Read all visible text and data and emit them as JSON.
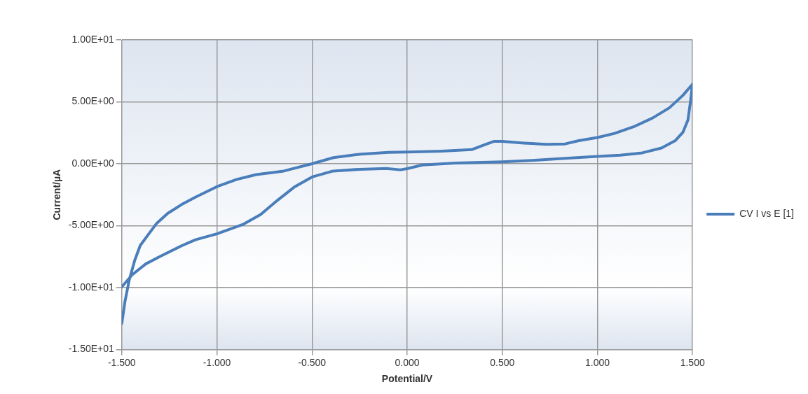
{
  "chart_data": {
    "type": "line",
    "xlabel": "Potential/V",
    "ylabel": "Current/µA",
    "xlim": [
      -1.5,
      1.5
    ],
    "ylim": [
      -15,
      10
    ],
    "xticks": [
      {
        "value": -1.5,
        "label": "-1.500"
      },
      {
        "value": -1,
        "label": "-1.000"
      },
      {
        "value": -0.5,
        "label": "-0.500"
      },
      {
        "value": 0,
        "label": "0.000"
      },
      {
        "value": 0.5,
        "label": "0.500"
      },
      {
        "value": 1,
        "label": "1.000"
      },
      {
        "value": 1.5,
        "label": "1.500"
      }
    ],
    "yticks": [
      {
        "value": -15,
        "label": "-1.50E+01"
      },
      {
        "value": -10,
        "label": "-1.00E+01"
      },
      {
        "value": -5,
        "label": "-5.00E+00"
      },
      {
        "value": 0,
        "label": "0.00E+00"
      },
      {
        "value": 5,
        "label": "5.00E+00"
      },
      {
        "value": 10,
        "label": "1.00E+01"
      }
    ],
    "grid": true,
    "legend": "right",
    "marker": "none",
    "line_style": "solid",
    "series": [
      {
        "name": "CV I vs E [1]",
        "color": "#4a7ebb",
        "x": [
          -1.5,
          -1.483,
          -1.461,
          -1.432,
          -1.403,
          -1.36,
          -1.316,
          -1.258,
          -1.186,
          -1.113,
          -1.0,
          -0.896,
          -0.794,
          -0.649,
          -0.5,
          -0.388,
          -0.243,
          -0.099,
          0,
          0.18,
          0.339,
          0.397,
          0.455,
          0.5,
          0.614,
          0.73,
          0.83,
          0.902,
          1.0,
          1.09,
          1.19,
          1.29,
          1.378,
          1.45,
          1.5,
          1.49,
          1.476,
          1.45,
          1.409,
          1.337,
          1.236,
          1.12,
          1.0,
          0.83,
          0.686,
          0.5,
          0.253,
          0.08,
          0,
          -0.036,
          -0.11,
          -0.25,
          -0.39,
          -0.5,
          -0.59,
          -0.68,
          -0.77,
          -0.86,
          -1.0,
          -1.113,
          -1.186,
          -1.301,
          -1.374,
          -1.446,
          -1.5
        ],
        "values": [
          -12.9,
          -11.1,
          -9.4,
          -7.8,
          -6.6,
          -5.7,
          -4.8,
          -4.0,
          -3.3,
          -2.7,
          -1.85,
          -1.27,
          -0.88,
          -0.59,
          0,
          0.49,
          0.78,
          0.92,
          0.94,
          1.02,
          1.14,
          1.47,
          1.8,
          1.8,
          1.67,
          1.57,
          1.6,
          1.86,
          2.12,
          2.45,
          2.98,
          3.69,
          4.51,
          5.53,
          6.43,
          5.1,
          3.53,
          2.55,
          1.86,
          1.27,
          0.88,
          0.69,
          0.59,
          0.43,
          0.29,
          0.16,
          0.06,
          -0.1,
          -0.4,
          -0.49,
          -0.39,
          -0.45,
          -0.59,
          -1.07,
          -1.85,
          -2.93,
          -4.1,
          -4.88,
          -5.66,
          -6.14,
          -6.63,
          -7.5,
          -8.09,
          -8.97,
          -9.95
        ]
      }
    ]
  }
}
